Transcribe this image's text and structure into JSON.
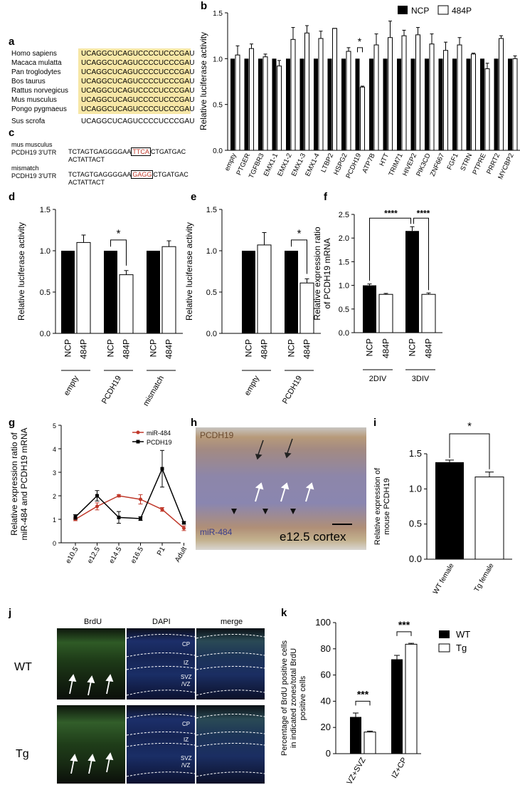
{
  "panels": {
    "a": "a",
    "b": "b",
    "c": "c",
    "d": "d",
    "e": "e",
    "f": "f",
    "g": "g",
    "h": "h",
    "i": "i",
    "j": "j",
    "k": "k"
  },
  "panel_a": {
    "species": [
      "Homo sapiens",
      "Macaca mulatta",
      "Pan troglodytes",
      "Bos taurus",
      "Rattus norvegicus",
      "Mus musculus",
      "Pongo pygmaeus",
      "Sus scrofa"
    ],
    "sequences": [
      "UCAGGCUCAGUCCCCUCCCGAU",
      "UCAGGCUCAGUCCCCUCCCGAU",
      "UCAGGCUCAGUCCCCUCCCGAU",
      "UCAGGCUCAGUCCCCUCCCGAU",
      "UCAGGCUCAGUCCCCUCCCGAU",
      "UCAGGCUCAGUCCCCUCCCGAU",
      "UCAGGCUCAGUCCCCUCCCGAU",
      "UCAGGCUCAGUCCCCUCCCGAU"
    ],
    "highlight_color": "#f7e7a6"
  },
  "panel_c": {
    "row1_name_line1": "mus musculus",
    "row1_name_line2": "PCDH19 3'UTR",
    "row1_seq_pre": "TCTAGTGAGGGGAA",
    "row1_seq_box": "TTCA",
    "row1_seq_post": "CTGATGAC",
    "row1_seq_line2": "ACTATTACT",
    "row2_name_line1": "mismatch",
    "row2_name_line2": "PCDH19 3'UTR",
    "row2_seq_pre": "TCTAGTGAGGGGAA",
    "row2_seq_box": "GAGG",
    "row2_seq_post": "CTGATGAC",
    "row2_seq_line2": "ACTATTACT"
  },
  "chart_data": [
    {
      "id": "b",
      "type": "bar",
      "ylabel": "Relative luciferase activity",
      "ylim": [
        0,
        1.5
      ],
      "yticks": [
        "0.0",
        "0.5",
        "1.0",
        "1.5"
      ],
      "legend": [
        "NCP",
        "484P"
      ],
      "legend_position": "top-right",
      "categories": [
        "empty",
        "PTGER",
        "TGFBR3",
        "EMX1-1",
        "EMX1-2",
        "EMX1-3",
        "EMX1-4",
        "LTBP2",
        "HSPG2",
        "PCDH19",
        "ATP7B",
        "HTT",
        "TRIM71",
        "HIVEP2",
        "PIK3CD",
        "ZNF667",
        "FGF1",
        "STRN",
        "PTPRE",
        "PRRT2",
        "MYCBP2"
      ],
      "series": [
        {
          "name": "NCP",
          "values": [
            1,
            1,
            1,
            1,
            1,
            1,
            1,
            1,
            1,
            1,
            1,
            1,
            1,
            1,
            1,
            1,
            1,
            1,
            1,
            1,
            1
          ]
        },
        {
          "name": "484P",
          "values": [
            1.04,
            1.11,
            1.02,
            0.92,
            1.21,
            1.28,
            1.22,
            1.33,
            1.08,
            0.69,
            1.15,
            1.23,
            1.25,
            1.26,
            1.16,
            1.09,
            1.15,
            1.05,
            0.89,
            1.22,
            1.0
          ],
          "errors": [
            0.1,
            0.05,
            0.03,
            0.06,
            0.13,
            0.08,
            0.08,
            0.0,
            0.04,
            0.01,
            0.12,
            0.18,
            0.06,
            0.08,
            0.11,
            0.09,
            0.08,
            0.01,
            0.06,
            0.03,
            0.03
          ]
        }
      ],
      "annotation": "*"
    },
    {
      "id": "d",
      "type": "bar",
      "ylabel": "Relative luciferase activity",
      "ylim": [
        0,
        1.5
      ],
      "yticks": [
        "0.0",
        "0.5",
        "1.0",
        "1.5"
      ],
      "bar_labels": [
        "NCP",
        "484P",
        "NCP",
        "484P",
        "NCP",
        "484P"
      ],
      "groups": [
        "empty",
        "PCDH19",
        "mismatch"
      ],
      "values": [
        1.0,
        1.1,
        1.0,
        0.71,
        1.0,
        1.05
      ],
      "errors": [
        0,
        0.09,
        0,
        0.05,
        0,
        0.07
      ],
      "annotation": "*"
    },
    {
      "id": "e",
      "type": "bar",
      "ylabel": "Relative luciferase activity",
      "ylim": [
        0,
        1.5
      ],
      "yticks": [
        "0.0",
        "0.5",
        "1.0",
        "1.5"
      ],
      "bar_labels": [
        "NCP",
        "484P",
        "NCP",
        "484P"
      ],
      "groups": [
        "empty",
        "PCDH19"
      ],
      "values": [
        1.0,
        1.07,
        1.0,
        0.61
      ],
      "errors": [
        0,
        0.15,
        0,
        0.05
      ],
      "annotation": "*"
    },
    {
      "id": "f",
      "type": "bar",
      "ylabel_line1": "Relative expression ratio",
      "ylabel_line2": "of PCDH19 mRNA",
      "ylim": [
        0,
        2.5
      ],
      "yticks": [
        "0.0",
        "0.5",
        "1.0",
        "1.5",
        "2.0",
        "2.5"
      ],
      "bar_labels": [
        "NCP",
        "484P",
        "NCP",
        "484P"
      ],
      "groups": [
        "2DIV",
        "3DIV"
      ],
      "values": [
        1.0,
        0.81,
        2.15,
        0.81
      ],
      "errors": [
        0.03,
        0.02,
        0.09,
        0.03
      ],
      "annotations": [
        "****",
        "****"
      ]
    },
    {
      "id": "g",
      "type": "line",
      "ylabel_line1": "Relative expression ratio of",
      "ylabel_line2": "miR-484 and PCDH19 mRNA",
      "ylim": [
        0,
        5
      ],
      "yticks": [
        "0",
        "1",
        "2",
        "3",
        "4",
        "5"
      ],
      "x": [
        "e10.5",
        "e12.5",
        "e14.5",
        "e16.5",
        "P1",
        "Adult"
      ],
      "series": [
        {
          "name": "miR-484",
          "color": "#c0392b",
          "values": [
            1.0,
            1.55,
            2.0,
            1.85,
            1.42,
            0.62
          ],
          "errors": [
            0.06,
            0.15,
            0.05,
            0.2,
            0.08,
            0.1
          ]
        },
        {
          "name": "PCDH19",
          "color": "#000000",
          "values": [
            1.1,
            2.0,
            1.08,
            1.03,
            3.15,
            0.85
          ],
          "errors": [
            0.1,
            0.22,
            0.25,
            0.08,
            0.78,
            0.05
          ]
        }
      ],
      "legend_position": "top-right"
    },
    {
      "id": "i",
      "type": "bar",
      "ylabel_line1": "Relative expression of",
      "ylabel_line2": "mouse PCDH19",
      "ylim": [
        0,
        1.5
      ],
      "yticks": [
        "0.0",
        "0.5",
        "1.0",
        "1.5"
      ],
      "categories": [
        "WT female",
        "Tg female"
      ],
      "values": [
        1.38,
        1.17
      ],
      "errors": [
        0.03,
        0.07
      ],
      "annotation": "*"
    },
    {
      "id": "k",
      "type": "bar",
      "ylabel_line1": "Percentage of BrdU positive cells",
      "ylabel_line2": "in indicated zones/total BrdU",
      "ylabel_line3": "positive cells",
      "ylim": [
        0,
        100
      ],
      "yticks": [
        "0",
        "20",
        "40",
        "60",
        "80",
        "100"
      ],
      "categories": [
        "VZ+SVZ",
        "IZ+CP"
      ],
      "series": [
        {
          "name": "WT",
          "values": [
            28,
            72
          ],
          "errors": [
            3,
            3
          ]
        },
        {
          "name": "Tg",
          "values": [
            16.5,
            83.5
          ],
          "errors": [
            0.7,
            0.7
          ]
        }
      ],
      "legend_position": "right",
      "annotations": [
        "***",
        "***"
      ]
    }
  ],
  "panel_h": {
    "top_label": "PCDH19",
    "bottom_label": "miR-484",
    "caption": "e12.5 cortex"
  },
  "panel_j": {
    "columns": [
      "BrdU",
      "DAPI",
      "merge"
    ],
    "rows": [
      "WT",
      "Tg"
    ],
    "zones": [
      "CP",
      "IZ",
      "SVZ",
      "/VZ"
    ]
  }
}
